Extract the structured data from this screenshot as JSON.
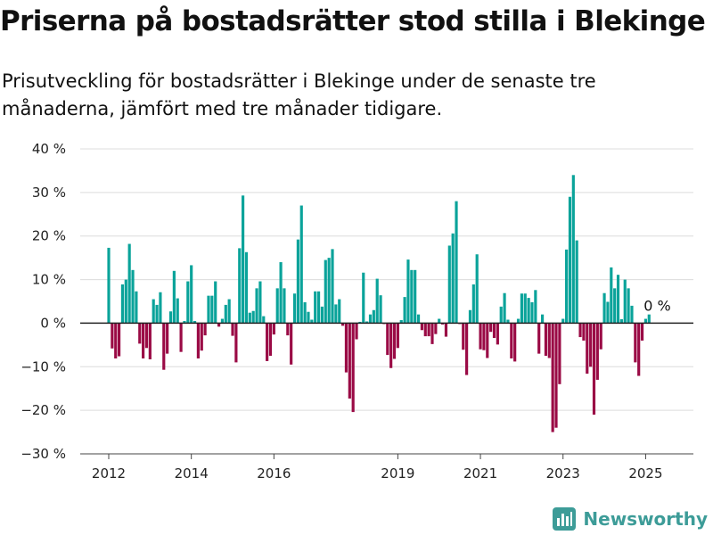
{
  "header": {
    "title": "Priserna på bostadsrätter stod stilla i Blekinge",
    "subtitle": "Prisutveckling för bostadsrätter i Blekinge under de senaste tre månaderna, jämfört med tre månader tidigare."
  },
  "brand": {
    "name": "Newsworthy",
    "icon": "bar-chart-icon"
  },
  "colors": {
    "positive": "#0aa39a",
    "negative": "#9a0a45",
    "grid": "#dcdcdc",
    "brand": "#3d9c98"
  },
  "chart_data": {
    "type": "bar",
    "title": "Priserna på bostadsrätter stod stilla i Blekinge",
    "subtitle": "Prisutveckling för bostadsrätter i Blekinge under de senaste tre månaderna, jämfört med tre månader tidigare.",
    "ylim": [
      -30,
      40
    ],
    "yticks": [
      -30,
      -20,
      -10,
      0,
      10,
      20,
      30,
      40
    ],
    "ytick_labels": [
      "−30 %",
      "−20 %",
      "−10 %",
      "0 %",
      "10 %",
      "20 %",
      "30 %",
      "40 %"
    ],
    "xticks": [
      2012,
      2014,
      2016,
      2019,
      2021,
      2023,
      2025
    ],
    "xtick_labels": [
      "2012",
      "2014",
      "2016",
      "2019",
      "2021",
      "2023",
      "2025"
    ],
    "grid": true,
    "annotation": {
      "label": "0 %",
      "value": 0
    },
    "start": "2012-01",
    "values": [
      17.3,
      -5.8,
      -8.1,
      -7.6,
      8.9,
      10.0,
      18.2,
      12.2,
      7.3,
      -4.7,
      -8.1,
      -5.7,
      -8.3,
      5.5,
      4.2,
      7.1,
      -10.7,
      -7.0,
      2.7,
      12.0,
      5.7,
      -6.6,
      0.5,
      9.6,
      13.3,
      0.5,
      -8.1,
      -6.3,
      -2.8,
      6.3,
      6.3,
      9.6,
      -0.8,
      1.0,
      4.2,
      5.5,
      -2.9,
      -9.0,
      17.2,
      29.3,
      16.3,
      2.4,
      2.8,
      8.0,
      9.6,
      1.6,
      -8.7,
      -7.5,
      -2.6,
      8.0,
      14.0,
      8.0,
      -2.8,
      -9.5,
      6.8,
      19.2,
      27.0,
      4.8,
      2.6,
      0.8,
      7.3,
      7.3,
      3.8,
      14.5,
      15.0,
      17.0,
      4.3,
      5.5,
      -0.6,
      -11.3,
      -17.3,
      -20.4,
      -3.7,
      0.3,
      11.6,
      0.4,
      2.0,
      3.0,
      10.2,
      6.4,
      -0.2,
      -7.3,
      -10.3,
      -8.2,
      -5.7,
      0.7,
      6.0,
      14.6,
      12.2,
      12.2,
      2.0,
      -1.6,
      -3.0,
      -3.0,
      -4.8,
      -2.5,
      1.0,
      -0.3,
      -3.1,
      17.8,
      20.6,
      28.0,
      -0.2,
      -6.1,
      -11.9,
      3.0,
      8.9,
      15.8,
      -6.0,
      -6.2,
      -8.0,
      -2.0,
      -3.4,
      -4.9,
      3.8,
      6.9,
      0.8,
      -8.1,
      -8.8,
      1.0,
      6.8,
      6.8,
      5.8,
      4.8,
      7.6,
      -7.0,
      2.0,
      -7.5,
      -8.0,
      -25.0,
      -24.0,
      -14.0,
      1.0,
      16.9,
      29.0,
      34.0,
      19.0,
      -3.2,
      -4.0,
      -11.6,
      -10.0,
      -21.0,
      -13.0,
      -6.0,
      6.9,
      4.9,
      12.8,
      8.0,
      11.1,
      0.9,
      10.0,
      8.0,
      4.0,
      -9.0,
      -12.1,
      -4.0,
      1.0,
      2.0
    ]
  }
}
